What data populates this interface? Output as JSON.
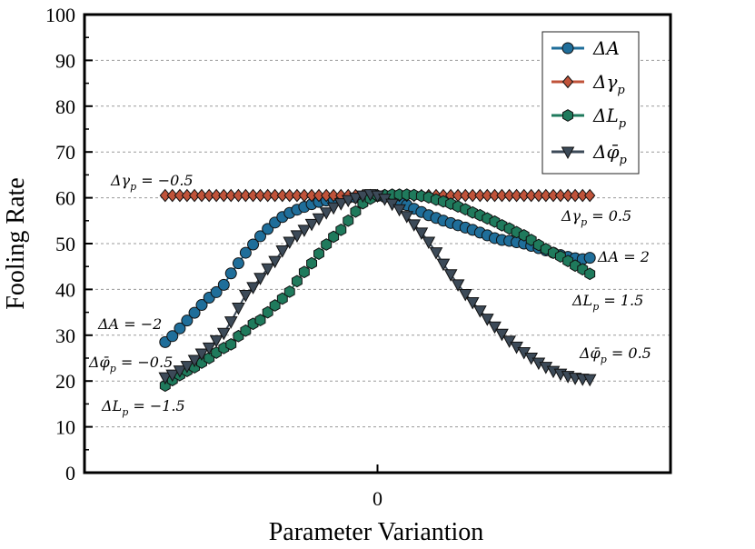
{
  "chart_data": {
    "type": "line",
    "xlabel": "Parameter Variantion",
    "ylabel": "Fooling Rate",
    "ylim": [
      0,
      100
    ],
    "yticks": [
      0,
      10,
      20,
      30,
      40,
      50,
      60,
      70,
      80,
      90,
      100
    ],
    "xticks": [
      {
        "value": 0,
        "label": "0"
      }
    ],
    "xlim": [
      -1.38,
      1.38
    ],
    "grid": "horizontal dotted",
    "legend_position": "top-right",
    "series": [
      {
        "name": "ΔA",
        "color": "#1f6e9a",
        "marker": "circle",
        "x": [
          -1.0,
          -0.966,
          -0.931,
          -0.897,
          -0.862,
          -0.828,
          -0.793,
          -0.759,
          -0.724,
          -0.69,
          -0.655,
          -0.621,
          -0.586,
          -0.552,
          -0.517,
          -0.483,
          -0.448,
          -0.414,
          -0.379,
          -0.345,
          -0.31,
          -0.276,
          -0.241,
          -0.207,
          -0.172,
          -0.138,
          -0.103,
          -0.069,
          -0.034,
          0.0,
          0.034,
          0.069,
          0.103,
          0.138,
          0.172,
          0.207,
          0.241,
          0.276,
          0.31,
          0.345,
          0.379,
          0.414,
          0.448,
          0.483,
          0.517,
          0.552,
          0.586,
          0.621,
          0.655,
          0.69,
          0.724,
          0.759,
          0.793,
          0.828,
          0.862,
          0.897,
          0.931,
          0.966,
          1.0
        ],
        "y": [
          28.5,
          29.8,
          31.5,
          33.2,
          34.9,
          36.6,
          38.2,
          39.4,
          41.0,
          43.5,
          45.7,
          48.0,
          49.8,
          51.6,
          53.2,
          54.6,
          55.8,
          56.7,
          57.4,
          58.0,
          58.6,
          59.1,
          59.4,
          59.7,
          59.9,
          60.0,
          60.1,
          60.2,
          60.3,
          60.4,
          60.2,
          59.8,
          59.1,
          58.4,
          57.6,
          56.9,
          56.2,
          55.6,
          55.0,
          54.5,
          54.0,
          53.5,
          53.0,
          52.4,
          51.8,
          51.2,
          50.8,
          50.6,
          50.3,
          50.0,
          49.5,
          49.0,
          48.5,
          48.0,
          47.5,
          47.1,
          46.8,
          46.6,
          46.9
        ]
      },
      {
        "name": "Δγ_p",
        "color": "#c0533a",
        "marker": "diamond",
        "x": [
          -1.0,
          -0.966,
          -0.931,
          -0.897,
          -0.862,
          -0.828,
          -0.793,
          -0.759,
          -0.724,
          -0.69,
          -0.655,
          -0.621,
          -0.586,
          -0.552,
          -0.517,
          -0.483,
          -0.448,
          -0.414,
          -0.379,
          -0.345,
          -0.31,
          -0.276,
          -0.241,
          -0.207,
          -0.172,
          -0.138,
          -0.103,
          -0.069,
          -0.034,
          0.0,
          0.034,
          0.069,
          0.103,
          0.138,
          0.172,
          0.207,
          0.241,
          0.276,
          0.31,
          0.345,
          0.379,
          0.414,
          0.448,
          0.483,
          0.517,
          0.552,
          0.586,
          0.621,
          0.655,
          0.69,
          0.724,
          0.759,
          0.793,
          0.828,
          0.862,
          0.897,
          0.931,
          0.966,
          1.0
        ],
        "y": [
          60.5,
          60.5,
          60.5,
          60.5,
          60.5,
          60.5,
          60.5,
          60.5,
          60.5,
          60.5,
          60.5,
          60.5,
          60.5,
          60.5,
          60.5,
          60.5,
          60.5,
          60.5,
          60.5,
          60.5,
          60.5,
          60.5,
          60.5,
          60.5,
          60.5,
          60.5,
          60.5,
          60.5,
          60.5,
          60.5,
          60.5,
          60.5,
          60.5,
          60.5,
          60.5,
          60.5,
          60.5,
          60.5,
          60.5,
          60.5,
          60.5,
          60.5,
          60.5,
          60.5,
          60.5,
          60.5,
          60.5,
          60.5,
          60.5,
          60.5,
          60.5,
          60.5,
          60.5,
          60.5,
          60.5,
          60.5,
          60.5,
          60.5,
          60.5
        ]
      },
      {
        "name": "ΔL_p",
        "color": "#1f7a5c",
        "marker": "hexagon",
        "x": [
          -1.0,
          -0.966,
          -0.931,
          -0.897,
          -0.862,
          -0.828,
          -0.793,
          -0.759,
          -0.724,
          -0.69,
          -0.655,
          -0.621,
          -0.586,
          -0.552,
          -0.517,
          -0.483,
          -0.448,
          -0.414,
          -0.379,
          -0.345,
          -0.31,
          -0.276,
          -0.241,
          -0.207,
          -0.172,
          -0.138,
          -0.103,
          -0.069,
          -0.034,
          0.0,
          0.034,
          0.069,
          0.103,
          0.138,
          0.172,
          0.207,
          0.241,
          0.276,
          0.31,
          0.345,
          0.379,
          0.414,
          0.448,
          0.483,
          0.517,
          0.552,
          0.586,
          0.621,
          0.655,
          0.69,
          0.724,
          0.759,
          0.793,
          0.828,
          0.862,
          0.897,
          0.931,
          0.966,
          1.0
        ],
        "y": [
          19.0,
          20.2,
          21.3,
          22.2,
          23.0,
          24.0,
          25.0,
          26.2,
          27.2,
          28.0,
          29.8,
          31.0,
          32.5,
          33.3,
          35.0,
          36.5,
          38.0,
          39.5,
          41.8,
          43.8,
          45.7,
          47.8,
          49.8,
          51.5,
          53.0,
          55.0,
          57.0,
          58.8,
          59.8,
          60.5,
          60.6,
          60.7,
          60.7,
          60.7,
          60.6,
          60.4,
          60.1,
          59.6,
          59.2,
          58.7,
          58.1,
          57.5,
          56.8,
          56.2,
          55.5,
          54.8,
          54.0,
          53.3,
          52.5,
          51.8,
          50.8,
          49.7,
          48.8,
          48.0,
          47.2,
          46.2,
          45.2,
          44.4,
          43.4
        ]
      },
      {
        "name": "Δφ̄_p",
        "color": "#3c4a58",
        "marker": "triangle-down",
        "x": [
          -1.0,
          -0.966,
          -0.931,
          -0.897,
          -0.862,
          -0.828,
          -0.793,
          -0.759,
          -0.724,
          -0.69,
          -0.655,
          -0.621,
          -0.586,
          -0.552,
          -0.517,
          -0.483,
          -0.448,
          -0.414,
          -0.379,
          -0.345,
          -0.31,
          -0.276,
          -0.241,
          -0.207,
          -0.172,
          -0.138,
          -0.103,
          -0.069,
          -0.034,
          0.0,
          0.034,
          0.069,
          0.103,
          0.138,
          0.172,
          0.207,
          0.241,
          0.276,
          0.31,
          0.345,
          0.379,
          0.414,
          0.448,
          0.483,
          0.517,
          0.552,
          0.586,
          0.621,
          0.655,
          0.69,
          0.724,
          0.759,
          0.793,
          0.828,
          0.862,
          0.897,
          0.931,
          0.966,
          1.0
        ],
        "y": [
          20.8,
          21.4,
          22.3,
          23.3,
          24.6,
          26.0,
          27.3,
          28.9,
          30.5,
          33.0,
          36.0,
          38.8,
          40.5,
          42.5,
          44.6,
          46.2,
          48.5,
          50.4,
          51.8,
          53.0,
          54.3,
          55.5,
          56.8,
          57.9,
          58.8,
          59.5,
          60.0,
          60.5,
          60.8,
          60.5,
          59.8,
          58.7,
          57.5,
          56.0,
          54.2,
          52.4,
          50.4,
          48.1,
          45.6,
          43.3,
          41.1,
          39.0,
          37.2,
          35.4,
          33.6,
          31.9,
          30.3,
          28.8,
          27.5,
          26.3,
          25.1,
          24.0,
          23.1,
          22.2,
          21.6,
          21.1,
          20.7,
          20.5,
          20.4
        ]
      }
    ],
    "legend": [
      "ΔA",
      "Δγ_p",
      "ΔL_p",
      "Δφ̄_p"
    ],
    "annotations": {
      "gamma_left": "Δγ_p = −0.5",
      "gamma_right": "Δγ_p = 0.5",
      "a_left": "ΔA = −2",
      "a_right": "ΔA = 2",
      "phi_left": "Δφ̄_p = −0.5",
      "phi_right": "Δφ̄_p = 0.5",
      "l_left": "ΔL_p = −1.5",
      "l_right": "ΔL_p = 1.5"
    }
  }
}
